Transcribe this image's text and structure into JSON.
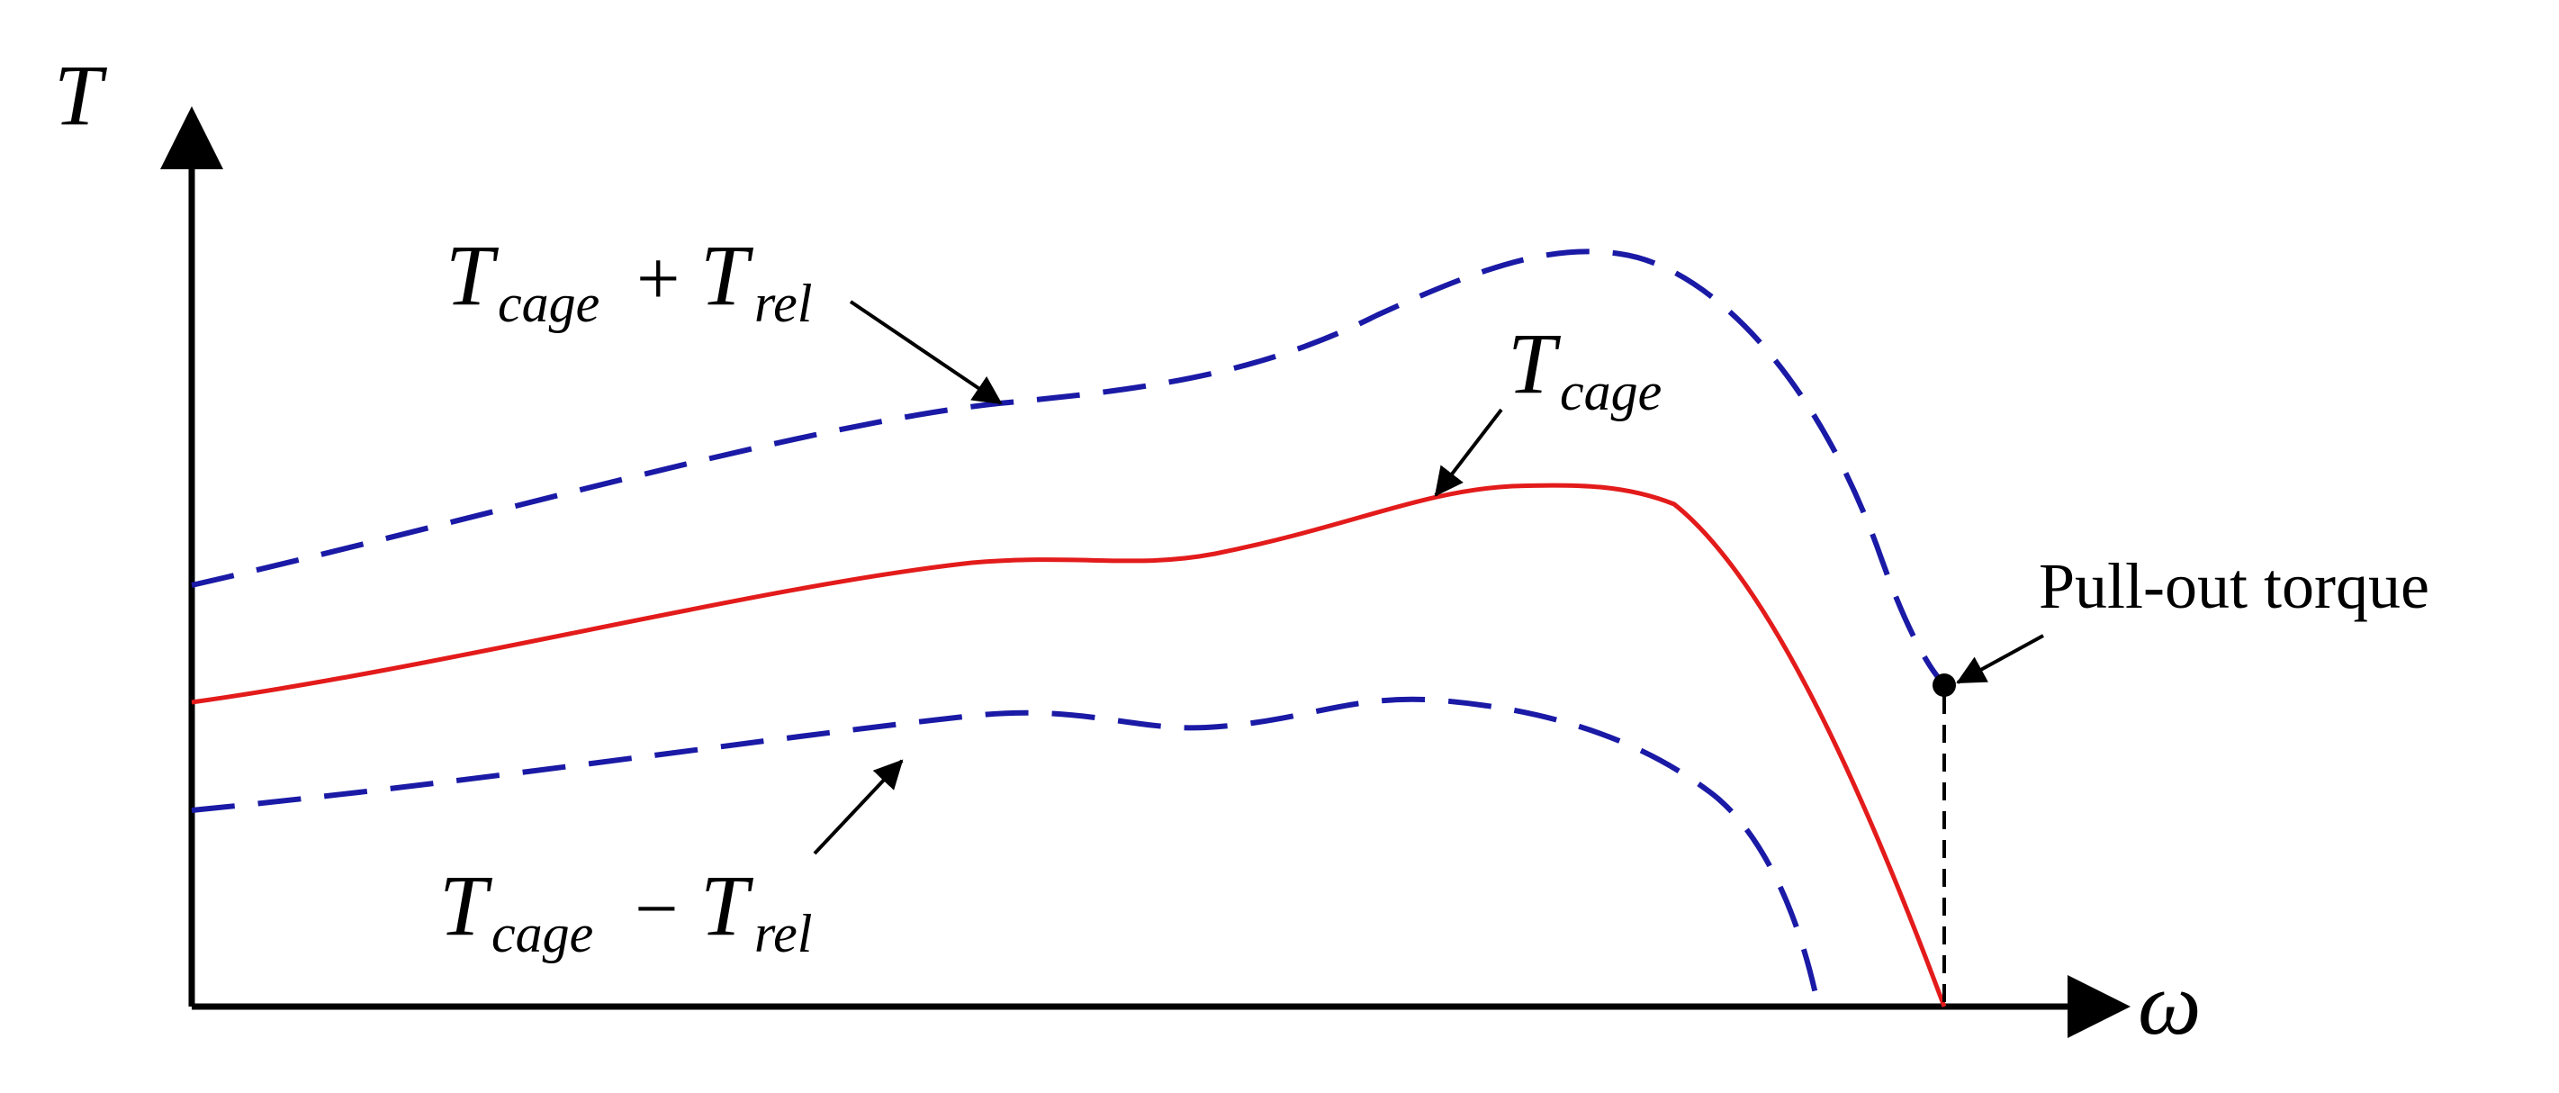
{
  "axes": {
    "y_label": "T",
    "x_label": "ω"
  },
  "curves": {
    "upper": {
      "label_main": "T",
      "label_sub1": "cage",
      "operator": "+",
      "label_main2": "T",
      "label_sub2": "rel",
      "color": "#1a1aa6",
      "style": "dashed"
    },
    "middle": {
      "label_main": "T",
      "label_sub": "cage",
      "color": "#e31b1b",
      "style": "solid"
    },
    "lower": {
      "label_main": "T",
      "label_sub1": "cage",
      "operator": "−",
      "label_main2": "T",
      "label_sub2": "rel",
      "color": "#1a1aa6",
      "style": "dashed"
    }
  },
  "annotation": {
    "pullout": "Pull-out torque"
  }
}
